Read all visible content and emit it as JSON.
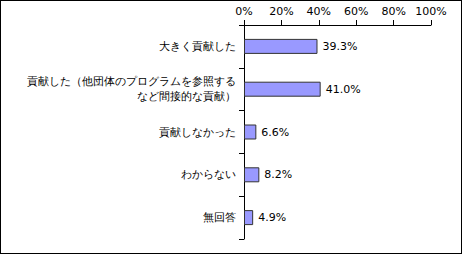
{
  "chart_data": {
    "type": "bar",
    "orientation": "horizontal",
    "categories": [
      "大きく貢献した",
      "貢献した（他団体のプログラムを参照する\nなど間接的な貢献）",
      "貢献しなかった",
      "わからない",
      "無回答"
    ],
    "values": [
      39.3,
      41.0,
      6.6,
      8.2,
      4.9
    ],
    "value_labels": [
      "39.3%",
      "41.0%",
      "6.6%",
      "8.2%",
      "4.9%"
    ],
    "color": "#9999ff",
    "xlim": [
      0,
      100
    ],
    "xticks": [
      {
        "value": 0,
        "label": "0%"
      },
      {
        "value": 20,
        "label": "20%"
      },
      {
        "value": 40,
        "label": "40%"
      },
      {
        "value": 60,
        "label": "60%"
      },
      {
        "value": 80,
        "label": "80%"
      },
      {
        "value": 100,
        "label": "100%"
      }
    ],
    "grid": false,
    "data_labels": true
  }
}
